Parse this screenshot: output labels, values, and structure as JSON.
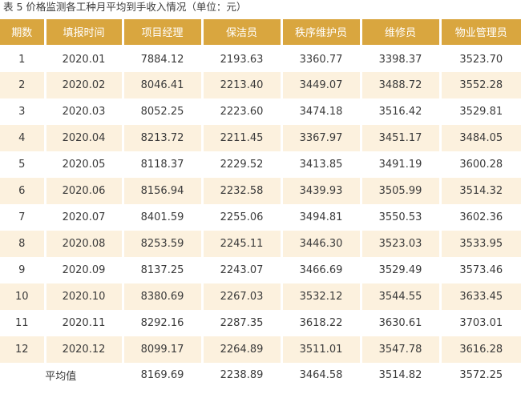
{
  "caption": "表 5  价格监测各工种月平均到手收入情况（单位：元）",
  "headers": [
    "期数",
    "填报时间",
    "项目经理",
    "保洁员",
    "秩序维护员",
    "维修员",
    "物业管理员"
  ],
  "rows": [
    [
      "1",
      "2020.01",
      "7884.12",
      "2193.63",
      "3360.77",
      "3398.37",
      "3523.70"
    ],
    [
      "2",
      "2020.02",
      "8046.41",
      "2213.40",
      "3449.07",
      "3488.72",
      "3552.28"
    ],
    [
      "3",
      "2020.03",
      "8052.25",
      "2223.60",
      "3474.18",
      "3516.42",
      "3529.81"
    ],
    [
      "4",
      "2020.04",
      "8213.72",
      "2211.45",
      "3367.97",
      "3451.17",
      "3484.05"
    ],
    [
      "5",
      "2020.05",
      "8118.37",
      "2229.52",
      "3413.85",
      "3491.19",
      "3600.28"
    ],
    [
      "6",
      "2020.06",
      "8156.94",
      "2232.58",
      "3439.93",
      "3505.99",
      "3514.32"
    ],
    [
      "7",
      "2020.07",
      "8401.59",
      "2255.06",
      "3494.81",
      "3550.53",
      "3602.36"
    ],
    [
      "8",
      "2020.08",
      "8253.59",
      "2245.11",
      "3446.30",
      "3523.03",
      "3533.95"
    ],
    [
      "9",
      "2020.09",
      "8137.25",
      "2243.07",
      "3466.69",
      "3529.49",
      "3573.46"
    ],
    [
      "10",
      "2020.10",
      "8380.69",
      "2267.03",
      "3532.12",
      "3544.55",
      "3633.45"
    ],
    [
      "11",
      "2020.11",
      "8292.16",
      "2287.35",
      "3618.22",
      "3630.61",
      "3703.01"
    ],
    [
      "12",
      "2020.12",
      "8099.17",
      "2264.89",
      "3511.01",
      "3547.78",
      "3616.28"
    ]
  ],
  "average": {
    "label": "平均值",
    "values": [
      "8169.69",
      "2238.89",
      "3464.58",
      "3514.82",
      "3572.25"
    ]
  },
  "colors": {
    "header_bg": "#d9a63f",
    "stripe_bg": "#fcf1de"
  }
}
